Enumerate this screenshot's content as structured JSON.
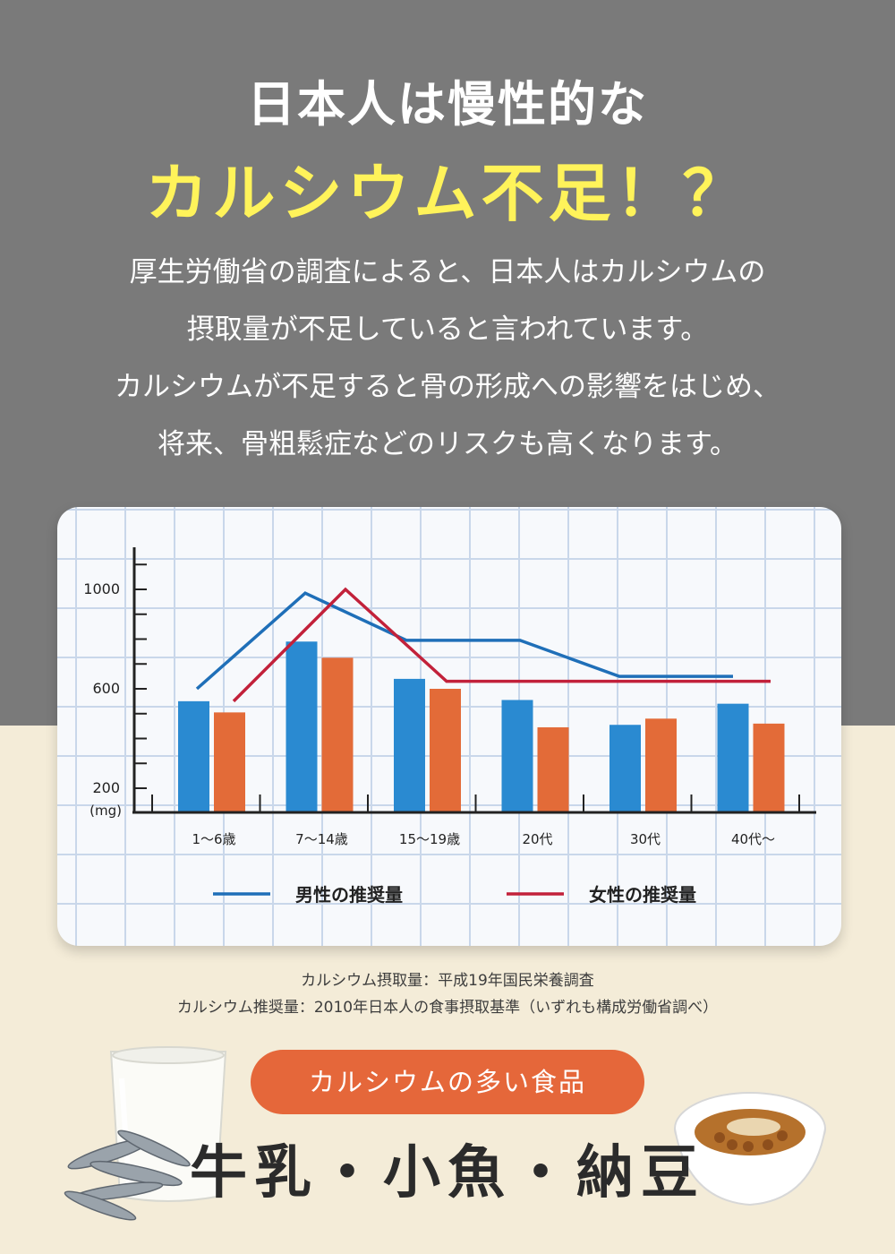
{
  "headline": {
    "line1": "日本人は慢性的な",
    "line2": "カルシウム不足！？"
  },
  "intro": [
    "厚生労働省の調査によると、日本人はカルシウムの",
    "摂取量が不足していると言われています。",
    "カルシウムが不足すると骨の形成への影響をはじめ、",
    "将来、骨粗鬆症などのリスクも高くなります。"
  ],
  "colors": {
    "male_line": "#1f6fb8",
    "female_line": "#c2213a",
    "bar_blue": "#2a8ad1",
    "bar_orange": "#e36b38",
    "accent_pill": "#e5673a",
    "headline_yellow": "#fff35a"
  },
  "chart_data": {
    "type": "bar",
    "categories": [
      "1〜6歳",
      "7〜14歳",
      "15〜19歳",
      "20代",
      "30代",
      "40代〜"
    ],
    "ylim": [
      200,
      1100
    ],
    "yticks": [
      "1000",
      "600",
      "200"
    ],
    "yunit": "(mg)",
    "series": [
      {
        "values": [
          550,
          790,
          640,
          555,
          455,
          540
        ]
      },
      {
        "values": [
          505,
          725,
          600,
          445,
          480,
          460
        ]
      }
    ],
    "lines": [
      {
        "name": "男性の推奨量",
        "values": [
          600,
          985,
          795,
          795,
          650,
          650
        ]
      },
      {
        "name": "女性の推奨量",
        "values": [
          550,
          1000,
          630,
          630,
          630,
          630
        ]
      }
    ],
    "legend_position": "bottom"
  },
  "source": [
    "カルシウム摂取量：平成19年国民栄養調査",
    "カルシウム推奨量：2010年日本人の食事摂取基準（いずれも構成労働省調べ）"
  ],
  "foods": {
    "pill_label": "カルシウムの多い食品",
    "items": "牛乳・小魚・納豆"
  }
}
